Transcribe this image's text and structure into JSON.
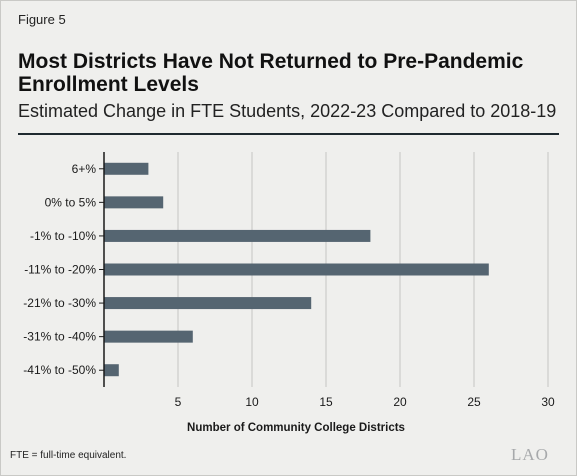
{
  "figure_label": "Figure 5",
  "title": "Most Districts Have Not Returned to Pre-Pandemic Enrollment Levels",
  "subtitle": "Estimated Change in FTE Students, 2022-23 Compared to 2018-19",
  "footnote": "FTE = full-time equivalent.",
  "logo_text": "LAO",
  "colors": {
    "bar": "#556571",
    "background": "#efefed",
    "grid": "#c4c4c2",
    "axis": "#1a1a1a"
  },
  "chart_data": {
    "type": "bar",
    "orientation": "horizontal",
    "categories": [
      "6+%",
      "0% to 5%",
      "-1% to -10%",
      "-11% to -20%",
      "-21% to -30%",
      "-31% to -40%",
      "-41% to -50%"
    ],
    "values": [
      3,
      4,
      18,
      26,
      14,
      6,
      1
    ],
    "xlabel": "Number of Community College Districts",
    "ylabel": "",
    "xlim": [
      0,
      30
    ],
    "xticks": [
      5,
      10,
      15,
      20,
      25,
      30
    ],
    "grid": true
  }
}
